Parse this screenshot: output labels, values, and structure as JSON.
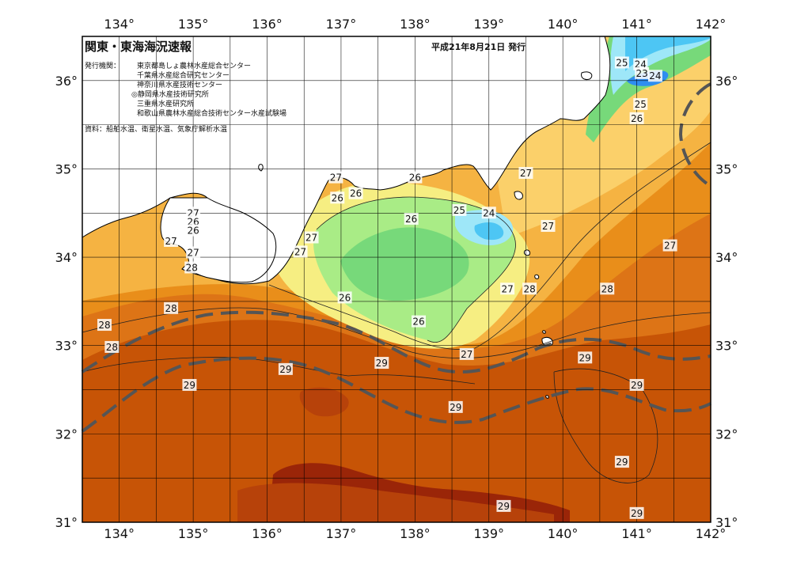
{
  "header": {
    "title": "関東・東海海況速報",
    "date": "平成21年8月21日 発行",
    "issuer_label": "発行機関：",
    "issuers": [
      "東京都島しょ農林水産総合センター",
      "千葉県水産総合研究センター",
      "神奈川県水産技術センター",
      "◎静岡県水産技術研究所",
      "三重県水産研究所",
      "和歌山県農林水産総合技術センター水産試験場"
    ],
    "source": "資料：船舶水温、衛星水温、気象庁解析水温"
  },
  "axes": {
    "lon_ticks": [
      "134°",
      "135°",
      "136°",
      "137°",
      "138°",
      "139°",
      "140°",
      "141°",
      "142°"
    ],
    "lat_ticks": [
      "31°",
      "32°",
      "33°",
      "34°",
      "35°",
      "36°"
    ],
    "lon_range": [
      133.5,
      142
    ],
    "lat_range": [
      31,
      36.5
    ]
  },
  "isotherm_labels": [
    {
      "text": "25",
      "lon": 140.8,
      "lat": 36.2
    },
    {
      "text": "24",
      "lon": 141.05,
      "lat": 36.18
    },
    {
      "text": "23",
      "lon": 141.07,
      "lat": 36.08
    },
    {
      "text": "24",
      "lon": 141.25,
      "lat": 36.05
    },
    {
      "text": "25",
      "lon": 141.05,
      "lat": 35.73
    },
    {
      "text": "26",
      "lon": 141.0,
      "lat": 35.57
    },
    {
      "text": "27",
      "lon": 136.93,
      "lat": 34.9
    },
    {
      "text": "26",
      "lon": 137.2,
      "lat": 34.72
    },
    {
      "text": "26",
      "lon": 136.95,
      "lat": 34.67
    },
    {
      "text": "26",
      "lon": 138.0,
      "lat": 34.9
    },
    {
      "text": "27",
      "lon": 139.5,
      "lat": 34.95
    },
    {
      "text": "25",
      "lon": 138.6,
      "lat": 34.53
    },
    {
      "text": "24",
      "lon": 139.0,
      "lat": 34.5
    },
    {
      "text": "26",
      "lon": 137.95,
      "lat": 34.43
    },
    {
      "text": "27",
      "lon": 139.8,
      "lat": 34.35
    },
    {
      "text": "27",
      "lon": 141.45,
      "lat": 34.13
    },
    {
      "text": "27",
      "lon": 135.0,
      "lat": 34.5
    },
    {
      "text": "26",
      "lon": 135.0,
      "lat": 34.4
    },
    {
      "text": "26",
      "lon": 135.0,
      "lat": 34.3
    },
    {
      "text": "27",
      "lon": 134.7,
      "lat": 34.18
    },
    {
      "text": "27",
      "lon": 135.0,
      "lat": 34.05
    },
    {
      "text": "28",
      "lon": 134.98,
      "lat": 33.88
    },
    {
      "text": "27",
      "lon": 136.6,
      "lat": 34.22
    },
    {
      "text": "27",
      "lon": 136.45,
      "lat": 34.06
    },
    {
      "text": "26",
      "lon": 137.05,
      "lat": 33.54
    },
    {
      "text": "26",
      "lon": 138.05,
      "lat": 33.27
    },
    {
      "text": "27",
      "lon": 139.25,
      "lat": 33.64
    },
    {
      "text": "28",
      "lon": 139.55,
      "lat": 33.64
    },
    {
      "text": "28",
      "lon": 140.6,
      "lat": 33.64
    },
    {
      "text": "28",
      "lon": 134.7,
      "lat": 33.42
    },
    {
      "text": "28",
      "lon": 133.8,
      "lat": 33.23
    },
    {
      "text": "28",
      "lon": 133.9,
      "lat": 32.98
    },
    {
      "text": "27",
      "lon": 138.7,
      "lat": 32.9
    },
    {
      "text": "29",
      "lon": 136.25,
      "lat": 32.73
    },
    {
      "text": "29",
      "lon": 137.55,
      "lat": 32.8
    },
    {
      "text": "29",
      "lon": 134.95,
      "lat": 32.55
    },
    {
      "text": "29",
      "lon": 140.3,
      "lat": 32.86
    },
    {
      "text": "29",
      "lon": 141.0,
      "lat": 32.55
    },
    {
      "text": "29",
      "lon": 138.55,
      "lat": 32.3
    },
    {
      "text": "29",
      "lon": 140.8,
      "lat": 31.68
    },
    {
      "text": "29",
      "lon": 139.2,
      "lat": 31.18
    },
    {
      "text": "29",
      "lon": 141.0,
      "lat": 31.1
    }
  ],
  "colors": {
    "t23": "#2f8ef0",
    "t24": "#4dc6f4",
    "t25": "#9ee7f8",
    "t26": "#77d97a",
    "t26b": "#a9ec86",
    "t27a": "#d8f07a",
    "t27": "#f6ee82",
    "t27b": "#fbd06a",
    "t27c": "#f5b342",
    "t28": "#e98e1a",
    "t28b": "#dd7416",
    "t29": "#c75406",
    "t29b": "#b7420a",
    "t30": "#9a2508",
    "land": "#ffffff",
    "coast": "#000000",
    "kuroshio": "#555555"
  }
}
